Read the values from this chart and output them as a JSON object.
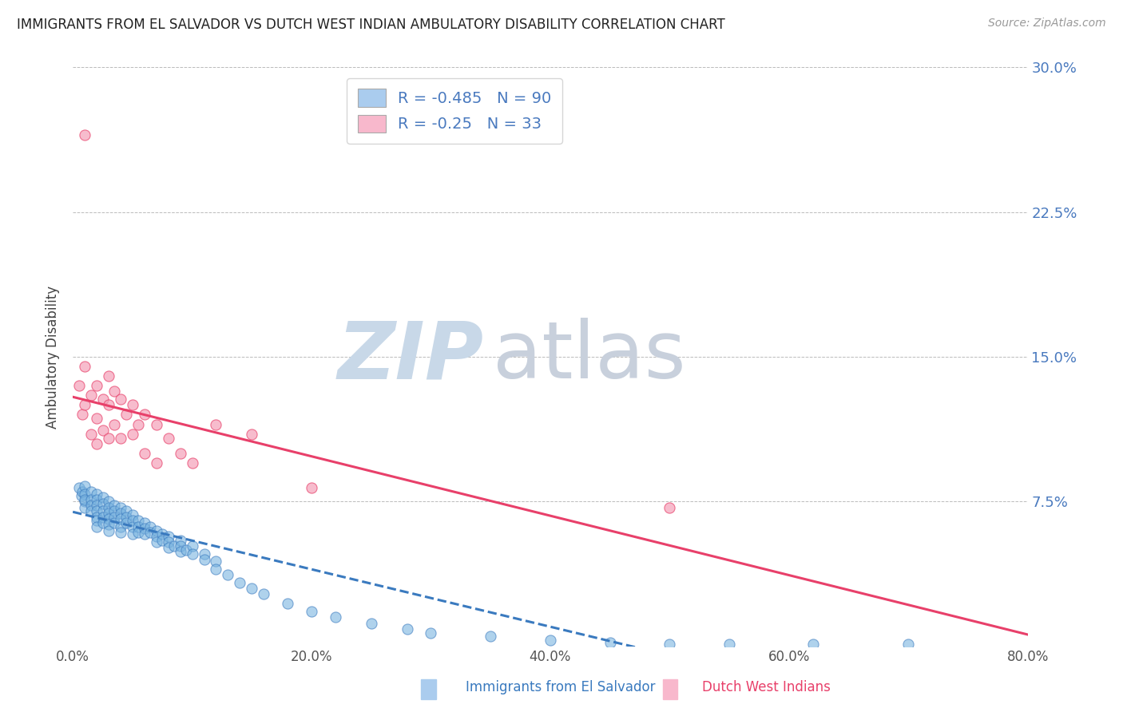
{
  "title": "IMMIGRANTS FROM EL SALVADOR VS DUTCH WEST INDIAN AMBULATORY DISABILITY CORRELATION CHART",
  "source": "Source: ZipAtlas.com",
  "ylabel": "Ambulatory Disability",
  "x_label_blue": "Immigrants from El Salvador",
  "x_label_pink": "Dutch West Indians",
  "xlim": [
    0.0,
    0.8
  ],
  "ylim": [
    0.0,
    0.3
  ],
  "xticks": [
    0.0,
    0.2,
    0.4,
    0.6,
    0.8
  ],
  "xtick_labels": [
    "0.0%",
    "20.0%",
    "40.0%",
    "60.0%",
    "80.0%"
  ],
  "yticks": [
    0.0,
    0.075,
    0.15,
    0.225,
    0.3
  ],
  "ytick_labels": [
    "",
    "7.5%",
    "15.0%",
    "22.5%",
    "30.0%"
  ],
  "R_blue": -0.485,
  "N_blue": 90,
  "R_pink": -0.25,
  "N_pink": 33,
  "blue_color": "#7ab4e0",
  "pink_color": "#f4a0b8",
  "blue_line_color": "#3a7abf",
  "pink_line_color": "#e8406a",
  "legend_blue_patch": "#aaccee",
  "legend_pink_patch": "#f8b8cc",
  "grid_color": "#bbbbbb",
  "watermark_zip_color": "#c8d8e8",
  "watermark_atlas_color": "#c8d0dc",
  "title_color": "#222222",
  "axis_label_color": "#444444",
  "tick_color_right": "#4a7abf",
  "background": "#ffffff",
  "blue_scatter_x": [
    0.005,
    0.007,
    0.008,
    0.01,
    0.01,
    0.01,
    0.01,
    0.01,
    0.015,
    0.015,
    0.015,
    0.015,
    0.02,
    0.02,
    0.02,
    0.02,
    0.02,
    0.02,
    0.02,
    0.025,
    0.025,
    0.025,
    0.025,
    0.025,
    0.03,
    0.03,
    0.03,
    0.03,
    0.03,
    0.03,
    0.035,
    0.035,
    0.035,
    0.035,
    0.04,
    0.04,
    0.04,
    0.04,
    0.04,
    0.045,
    0.045,
    0.045,
    0.05,
    0.05,
    0.05,
    0.05,
    0.055,
    0.055,
    0.055,
    0.06,
    0.06,
    0.06,
    0.065,
    0.065,
    0.07,
    0.07,
    0.07,
    0.075,
    0.075,
    0.08,
    0.08,
    0.08,
    0.085,
    0.09,
    0.09,
    0.09,
    0.095,
    0.1,
    0.1,
    0.11,
    0.11,
    0.12,
    0.12,
    0.13,
    0.14,
    0.15,
    0.16,
    0.18,
    0.2,
    0.22,
    0.25,
    0.28,
    0.3,
    0.35,
    0.4,
    0.45,
    0.5,
    0.55,
    0.62,
    0.7
  ],
  "blue_scatter_y": [
    0.082,
    0.078,
    0.08,
    0.083,
    0.079,
    0.075,
    0.072,
    0.076,
    0.08,
    0.076,
    0.073,
    0.07,
    0.079,
    0.076,
    0.073,
    0.07,
    0.067,
    0.065,
    0.062,
    0.077,
    0.074,
    0.07,
    0.067,
    0.064,
    0.075,
    0.072,
    0.069,
    0.066,
    0.063,
    0.06,
    0.073,
    0.07,
    0.067,
    0.064,
    0.072,
    0.069,
    0.066,
    0.062,
    0.059,
    0.07,
    0.067,
    0.064,
    0.068,
    0.065,
    0.062,
    0.058,
    0.065,
    0.062,
    0.059,
    0.064,
    0.061,
    0.058,
    0.062,
    0.059,
    0.06,
    0.057,
    0.054,
    0.058,
    0.055,
    0.057,
    0.054,
    0.051,
    0.052,
    0.055,
    0.052,
    0.049,
    0.05,
    0.052,
    0.048,
    0.048,
    0.045,
    0.044,
    0.04,
    0.037,
    0.033,
    0.03,
    0.027,
    0.022,
    0.018,
    0.015,
    0.012,
    0.009,
    0.007,
    0.005,
    0.003,
    0.002,
    0.001,
    0.001,
    0.001,
    0.001
  ],
  "pink_scatter_x": [
    0.005,
    0.008,
    0.01,
    0.01,
    0.015,
    0.015,
    0.02,
    0.02,
    0.02,
    0.025,
    0.025,
    0.03,
    0.03,
    0.03,
    0.035,
    0.035,
    0.04,
    0.04,
    0.045,
    0.05,
    0.05,
    0.055,
    0.06,
    0.06,
    0.07,
    0.07,
    0.08,
    0.09,
    0.1,
    0.12,
    0.15,
    0.2,
    0.5
  ],
  "pink_scatter_y": [
    0.135,
    0.12,
    0.145,
    0.125,
    0.13,
    0.11,
    0.135,
    0.118,
    0.105,
    0.128,
    0.112,
    0.14,
    0.125,
    0.108,
    0.132,
    0.115,
    0.128,
    0.108,
    0.12,
    0.125,
    0.11,
    0.115,
    0.12,
    0.1,
    0.115,
    0.095,
    0.108,
    0.1,
    0.095,
    0.115,
    0.11,
    0.082,
    0.072
  ],
  "pink_scatter_x_outlier": [
    0.01
  ],
  "pink_scatter_y_outlier": [
    0.265
  ]
}
